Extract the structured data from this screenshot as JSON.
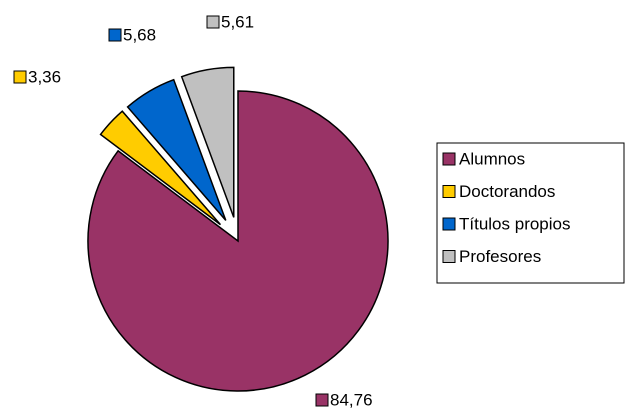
{
  "chart_data": {
    "type": "pie",
    "categories": [
      "Alumnos",
      "Doctorandos",
      "Títulos propios",
      "Profesores"
    ],
    "values": [
      84.76,
      3.36,
      5.68,
      5.61
    ],
    "value_labels": [
      "84,76",
      "3,36",
      "5,68",
      "5,61"
    ],
    "colors": [
      "#993366",
      "#ffcc00",
      "#0066cc",
      "#c0c0c0"
    ],
    "exploded": [
      false,
      true,
      true,
      true
    ],
    "legend": "right"
  }
}
